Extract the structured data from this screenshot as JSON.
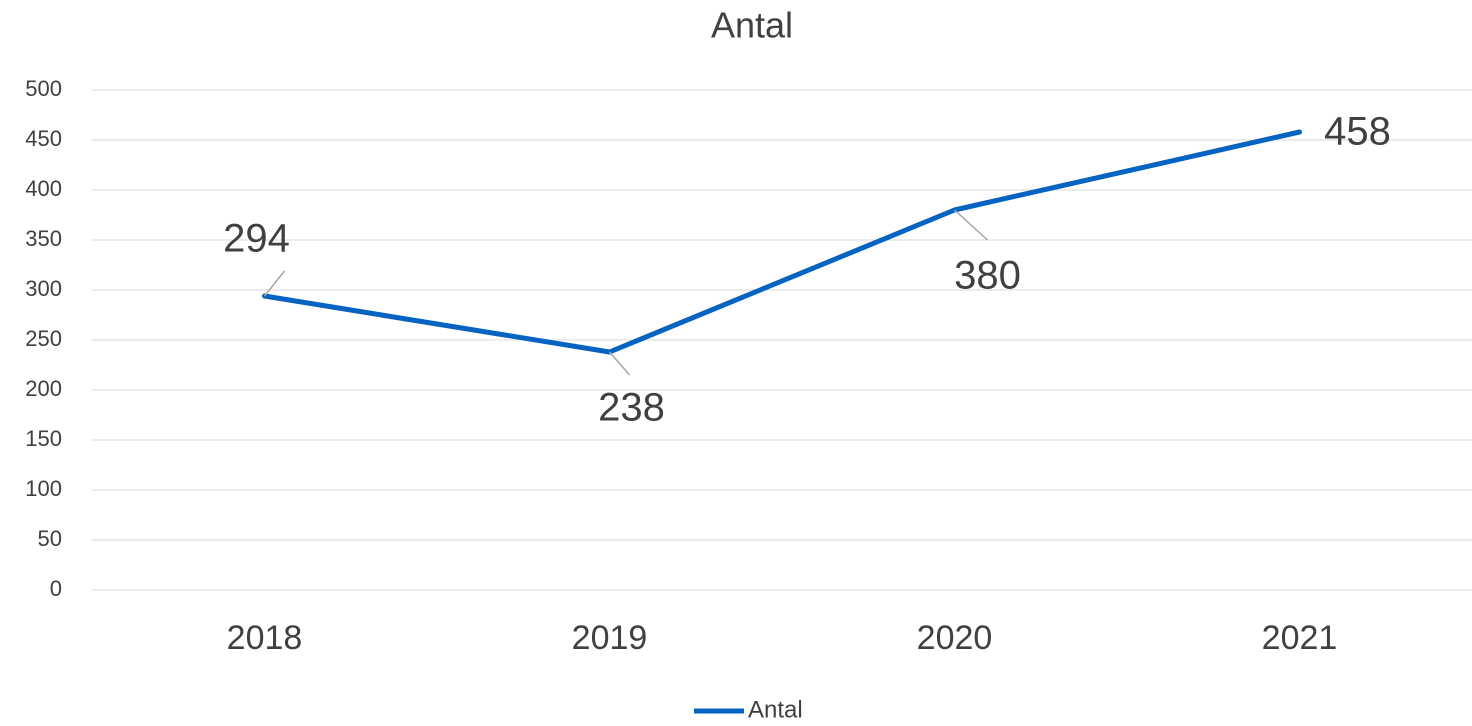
{
  "chart_data": {
    "type": "line",
    "title": "Antal",
    "categories": [
      "2018",
      "2019",
      "2020",
      "2021"
    ],
    "series": [
      {
        "name": "Antal",
        "color": "#0563c1",
        "values": [
          294,
          238,
          380,
          458
        ]
      }
    ],
    "ylim": [
      0,
      500
    ],
    "yticks": [
      0,
      50,
      100,
      150,
      200,
      250,
      300,
      350,
      400,
      450,
      500
    ],
    "grid": true,
    "legend": "bottom",
    "data_labels": true
  }
}
